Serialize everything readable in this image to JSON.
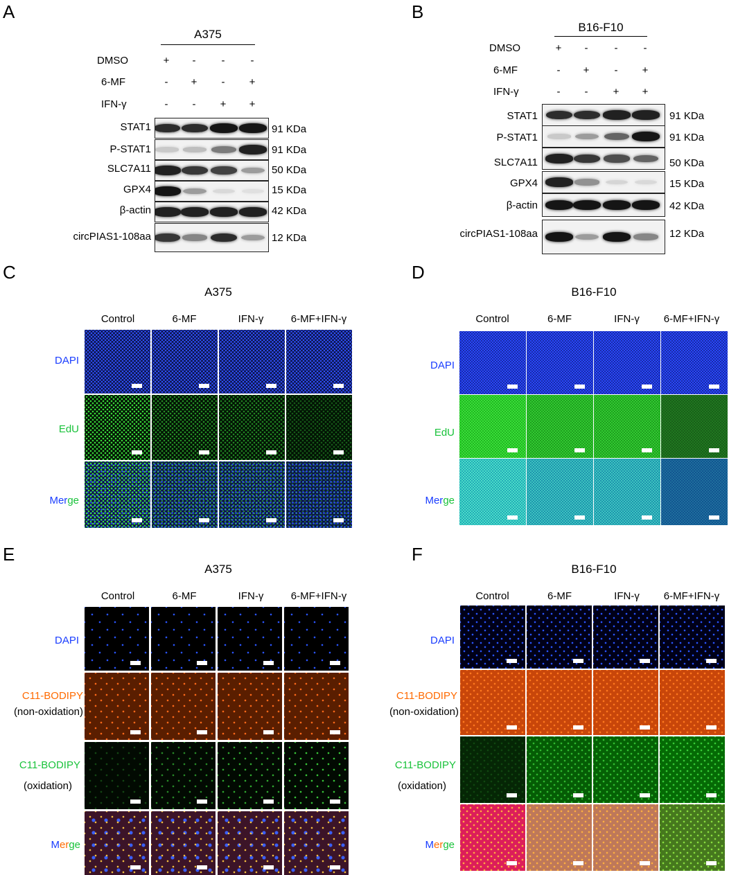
{
  "panels": {
    "A": {
      "letter": "A",
      "cell_line": "A375"
    },
    "B": {
      "letter": "B",
      "cell_line": "B16-F10"
    },
    "C": {
      "letter": "C",
      "cell_line": "A375"
    },
    "D": {
      "letter": "D",
      "cell_line": "B16-F10"
    },
    "E": {
      "letter": "E",
      "cell_line": "A375"
    },
    "F": {
      "letter": "F",
      "cell_line": "B16-F10"
    }
  },
  "western": {
    "treatments": [
      "DMSO",
      "6-MF",
      "IFN-γ"
    ],
    "signs": [
      [
        "+",
        "-",
        "-",
        "-"
      ],
      [
        "-",
        "+",
        "-",
        "+"
      ],
      [
        "-",
        "-",
        "+",
        "+"
      ]
    ],
    "proteins": [
      "STAT1",
      "P-STAT1",
      "SLC7A11",
      "GPX4",
      "β-actin",
      "circPIAS1-108aa"
    ],
    "sizes": [
      "91 KDa",
      "91 KDa",
      "50 KDa",
      "15 KDa",
      "42 KDa",
      "12 KDa"
    ],
    "A_band_intensity": [
      [
        0.85,
        0.85,
        0.95,
        0.95
      ],
      [
        0.15,
        0.2,
        0.5,
        0.9
      ],
      [
        0.9,
        0.8,
        0.75,
        0.35
      ],
      [
        0.95,
        0.35,
        0.08,
        0.05
      ],
      [
        0.9,
        0.9,
        0.9,
        0.9
      ],
      [
        0.8,
        0.45,
        0.85,
        0.35
      ]
    ],
    "B_band_intensity": [
      [
        0.85,
        0.85,
        0.9,
        0.9
      ],
      [
        0.15,
        0.35,
        0.6,
        0.95
      ],
      [
        0.9,
        0.8,
        0.7,
        0.6
      ],
      [
        0.9,
        0.4,
        0.1,
        0.08
      ],
      [
        0.95,
        0.95,
        0.95,
        0.95
      ],
      [
        0.95,
        0.35,
        0.95,
        0.45
      ]
    ]
  },
  "edu": {
    "columns": [
      "Control",
      "6-MF",
      "IFN-γ",
      "6-MF+IFN-γ"
    ],
    "rows": {
      "dapi": "DAPI",
      "edu": "EdU",
      "merge_1": "Mer",
      "merge_2": "ge"
    },
    "colors": {
      "dapi": "#1a3dff",
      "edu": "#19c23a"
    }
  },
  "bodipy": {
    "columns": [
      "Control",
      "6-MF",
      "IFN-γ",
      "6-MF+IFN-γ"
    ],
    "rows": {
      "dapi": "DAPI",
      "non_ox_1": "C11-BODIPY",
      "non_ox_2": "(non-oxidation)",
      "ox_1": "C11-BODIPY",
      "ox_2": "(oxidation)",
      "merge_m": "M",
      "merge_e": "e",
      "merge_r": "r",
      "merge_ge": "ge"
    },
    "colors": {
      "dapi": "#1a3dff",
      "orange": "#ff6a00",
      "green": "#19c23a"
    }
  }
}
